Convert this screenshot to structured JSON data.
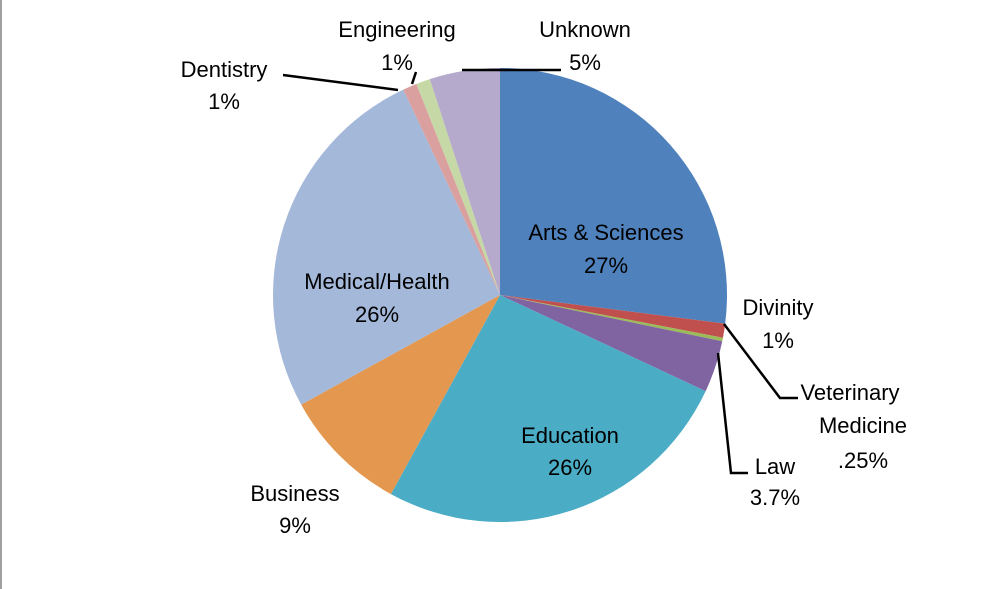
{
  "chart_data": {
    "type": "pie",
    "start": "12 o'clock, clockwise",
    "slices": [
      {
        "label": "Arts & Sciences",
        "value": 27,
        "value_label": "27%",
        "color": "#4F81BD"
      },
      {
        "label": "Divinity",
        "value": 1,
        "value_label": "1%",
        "color": "#C0504D"
      },
      {
        "label": "Veterinary Medicine",
        "value": 0.25,
        "value_label": ".25%",
        "color": "#9BBB59"
      },
      {
        "label": "Law",
        "value": 3.7,
        "value_label": "3.7%",
        "color": "#8064A2"
      },
      {
        "label": "Education",
        "value": 26,
        "value_label": "26%",
        "color": "#4BACC6"
      },
      {
        "label": "Business",
        "value": 9,
        "value_label": "9%",
        "color": "#E4974F"
      },
      {
        "label": "Medical/Health",
        "value": 26,
        "value_label": "26%",
        "color": "#A4B8DA"
      },
      {
        "label": "Dentistry",
        "value": 1,
        "value_label": "1%",
        "color": "#D9A09F"
      },
      {
        "label": "Engineering",
        "value": 1,
        "value_label": "1%",
        "color": "#C6D8A6"
      },
      {
        "label": "Unknown",
        "value": 5,
        "value_label": "5%",
        "color": "#B5AACB"
      }
    ]
  }
}
